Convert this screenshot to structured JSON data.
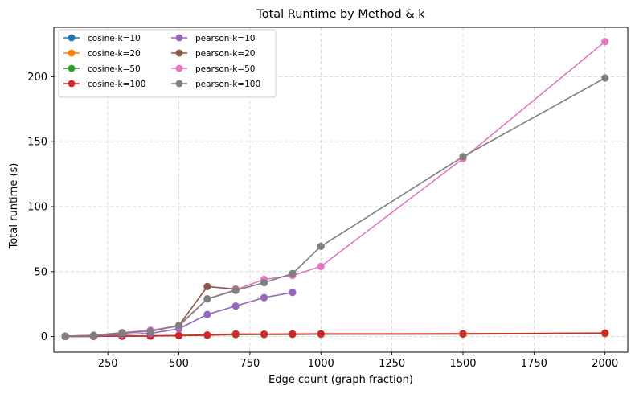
{
  "chart_data": {
    "type": "line",
    "title": "Total Runtime by Method & k",
    "xlabel": "Edge count (graph fraction)",
    "ylabel": "Total runtime (s)",
    "xlim": [
      60,
      2080
    ],
    "ylim": [
      -12,
      238
    ],
    "xticks": [
      250,
      500,
      750,
      1000,
      1250,
      1500,
      1750,
      2000
    ],
    "yticks": [
      0,
      50,
      100,
      150,
      200
    ],
    "grid": true,
    "legend": "top-left",
    "series": [
      {
        "name": "cosine-k=10",
        "color": "#1f77b4",
        "x": [
          100,
          200,
          300,
          400,
          500,
          600,
          700,
          800,
          900,
          1000,
          1500,
          2000
        ],
        "y": [
          0.1,
          0.2,
          0.4,
          0.6,
          0.8,
          1.0,
          1.5,
          1.6,
          1.7,
          1.8,
          1.9,
          2.4
        ]
      },
      {
        "name": "cosine-k=20",
        "color": "#ff7f0e",
        "x": [
          100,
          200,
          300,
          400,
          500,
          600,
          700,
          800,
          900,
          1000,
          1500,
          2000
        ],
        "y": [
          0.1,
          0.2,
          0.3,
          0.5,
          0.8,
          1.1,
          1.6,
          1.7,
          1.8,
          1.9,
          2.0,
          2.5
        ]
      },
      {
        "name": "cosine-k=50",
        "color": "#2ca02c",
        "x": [
          100,
          200,
          300,
          400,
          500,
          600,
          700,
          800,
          900,
          1000,
          1500,
          2000
        ],
        "y": [
          0.1,
          0.2,
          0.3,
          0.4,
          0.9,
          1.2,
          1.7,
          1.8,
          1.9,
          2.0,
          2.1,
          2.6
        ]
      },
      {
        "name": "cosine-k=100",
        "color": "#d62728",
        "x": [
          100,
          200,
          300,
          400,
          500,
          600,
          700,
          800,
          900,
          1000,
          1500,
          2000
        ],
        "y": [
          0.1,
          0.2,
          0.3,
          0.4,
          0.8,
          1.2,
          2.0,
          1.9,
          2.0,
          2.1,
          2.2,
          2.7
        ]
      },
      {
        "name": "pearson-k=10",
        "color": "#9467bd",
        "x": [
          100,
          200,
          300,
          400,
          500,
          600,
          700,
          800,
          900
        ],
        "y": [
          0.2,
          0.5,
          1.5,
          2.5,
          6.0,
          17.0,
          23.5,
          30.0,
          34.0
        ]
      },
      {
        "name": "pearson-k=20",
        "color": "#8c564b",
        "x": [
          100,
          200,
          300,
          400,
          500,
          600,
          700
        ],
        "y": [
          0.3,
          0.8,
          2.5,
          4.5,
          8.5,
          38.5,
          36.5
        ]
      },
      {
        "name": "pearson-k=50",
        "color": "#e377c2",
        "x": [
          100,
          200,
          300,
          400,
          500,
          600,
          700,
          800,
          900,
          1000,
          1500,
          2000
        ],
        "y": [
          0.3,
          0.9,
          3.0,
          5.0,
          8.0,
          29.0,
          36.0,
          44.0,
          47.0,
          54.0,
          137.0,
          227.0
        ]
      },
      {
        "name": "pearson-k=100",
        "color": "#7f7f7f",
        "x": [
          100,
          200,
          300,
          400,
          500,
          600,
          700,
          800,
          900,
          1000,
          1500,
          2000
        ],
        "y": [
          0.3,
          1.0,
          3.0,
          4.0,
          8.5,
          29.0,
          35.5,
          41.5,
          48.5,
          69.5,
          138.5,
          199.0
        ]
      }
    ]
  }
}
